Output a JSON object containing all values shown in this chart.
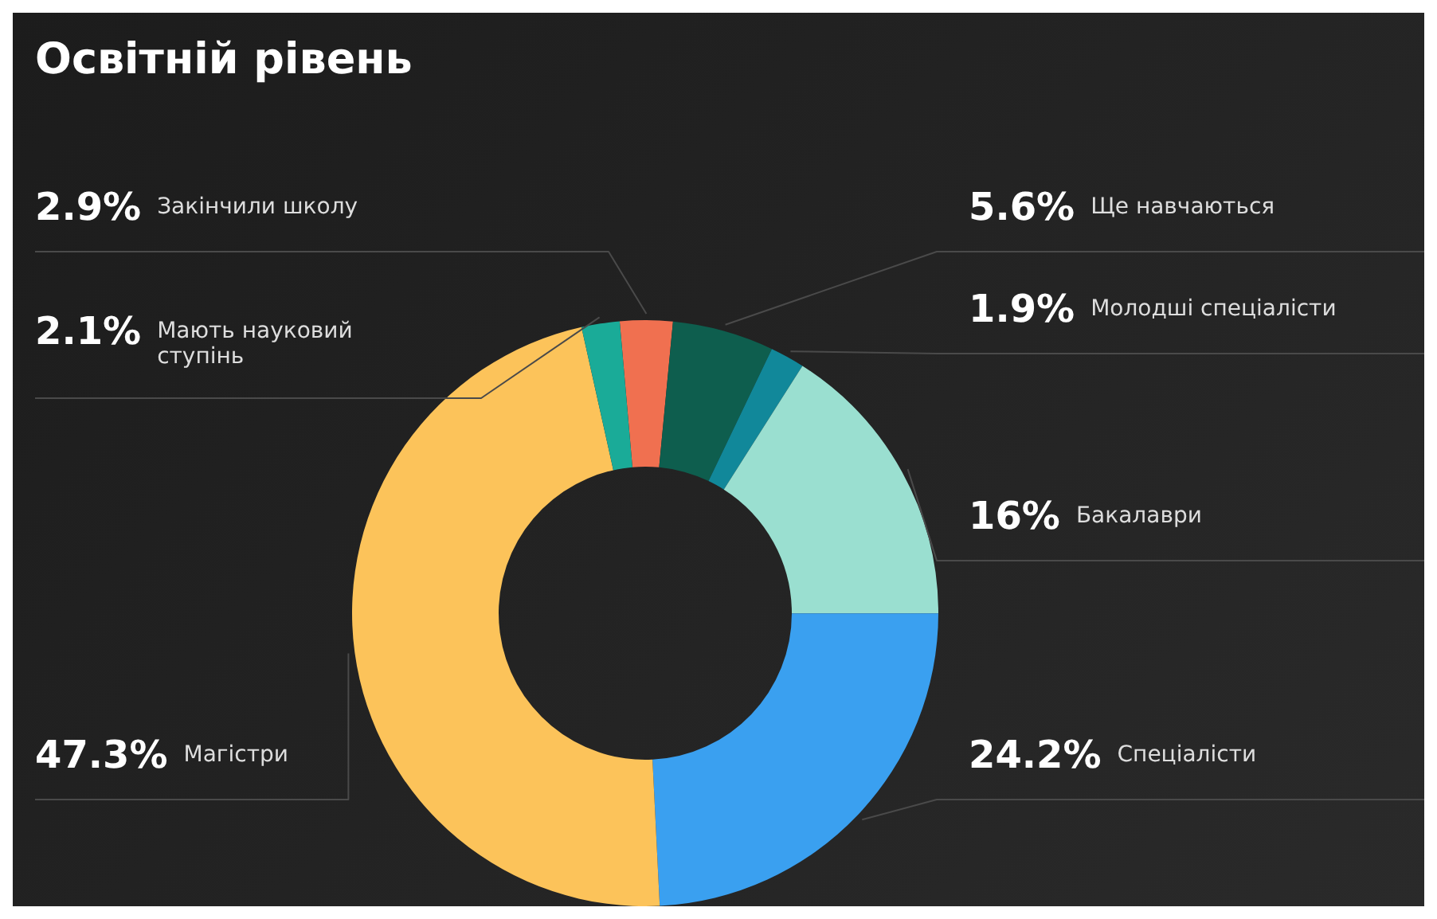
{
  "chart_data": {
    "type": "donut",
    "title": "Освітній рівень",
    "categories": [
      "Закінчили школу",
      "Ще навчаються",
      "Молодші спеціалісти",
      "Бакалаври",
      "Спеціалісти",
      "Магістри",
      "Мають науковий ступінь"
    ],
    "values": [
      2.9,
      5.6,
      1.9,
      16,
      24.2,
      47.3,
      2.1
    ],
    "value_labels": [
      "2.9%",
      "5.6%",
      "1.9%",
      "16%",
      "24.2%",
      "47.3%",
      "2.1%"
    ],
    "colors": [
      "#f07050",
      "#0e5e4e",
      "#11889a",
      "#9adfd0",
      "#3aa0f0",
      "#fcc35a",
      "#1aab98"
    ],
    "legend": false
  }
}
